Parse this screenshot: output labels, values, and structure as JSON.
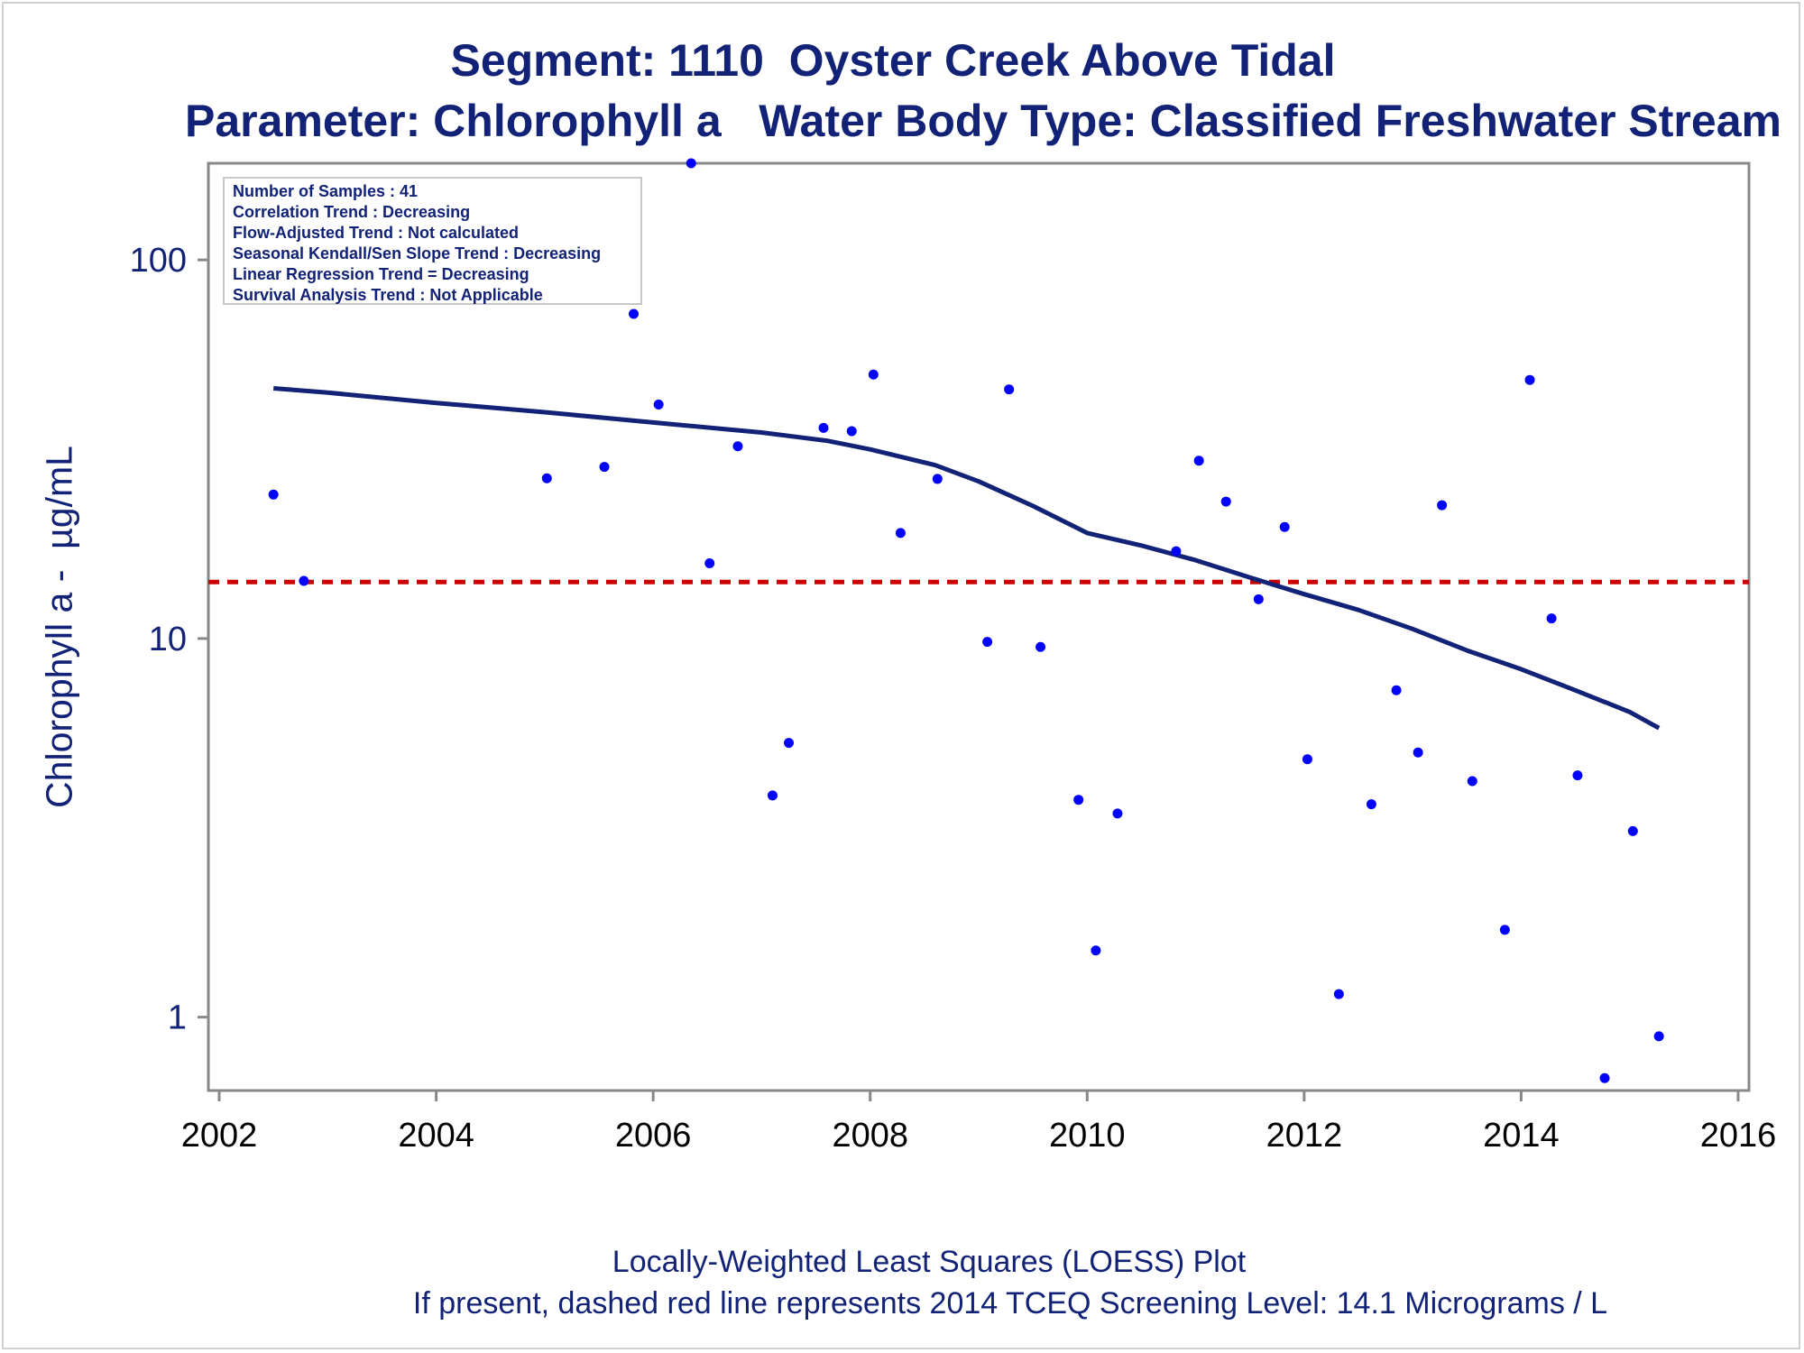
{
  "title": "Segment: 1110  Oyster Creek Above Tidal",
  "subtitle": "Parameter: Chlorophyll a   Water Body Type: Classified Freshwater Stream",
  "ylabel": "Chlorophyll a -  µg/mL",
  "footnote1": "Locally-Weighted Least Squares (LOESS) Plot",
  "footnote2": "If present, dashed red line represents 2014 TCEQ Screening Level: 14.1 Micrograms / L",
  "stats": [
    "Number of Samples : 41",
    "Correlation Trend : Decreasing",
    "Flow-Adjusted Trend : Not calculated",
    "Seasonal Kendall/Sen Slope Trend : Decreasing",
    "Linear Regression Trend = Decreasing",
    "Survival Analysis Trend : Not Applicable"
  ],
  "colors": {
    "text": "#112277",
    "points": "#0000ff",
    "loess": "#112277",
    "screening": "#cc0000",
    "axis": "#888888"
  },
  "chart_data": {
    "type": "scatter",
    "y_scale": "log",
    "xlim": [
      2001.9,
      2016.1
    ],
    "ylim": [
      0.64,
      180
    ],
    "xticks": [
      "2002",
      "2004",
      "2006",
      "2008",
      "2010",
      "2012",
      "2014",
      "2016"
    ],
    "yticks": [
      "1",
      "10",
      "100"
    ],
    "screening_level": 14.1,
    "points": [
      {
        "x": 2002.5,
        "y": 24
      },
      {
        "x": 2002.78,
        "y": 14.2
      },
      {
        "x": 2005.02,
        "y": 26.5
      },
      {
        "x": 2005.55,
        "y": 28.4
      },
      {
        "x": 2005.82,
        "y": 72
      },
      {
        "x": 2006.05,
        "y": 41.5
      },
      {
        "x": 2006.35,
        "y": 180
      },
      {
        "x": 2006.52,
        "y": 15.8
      },
      {
        "x": 2006.78,
        "y": 32.2
      },
      {
        "x": 2007.1,
        "y": 3.85
      },
      {
        "x": 2007.25,
        "y": 5.3
      },
      {
        "x": 2007.57,
        "y": 36
      },
      {
        "x": 2007.83,
        "y": 35.3
      },
      {
        "x": 2008.03,
        "y": 49.8
      },
      {
        "x": 2008.28,
        "y": 19
      },
      {
        "x": 2008.62,
        "y": 26.4
      },
      {
        "x": 2009.08,
        "y": 9.8
      },
      {
        "x": 2009.28,
        "y": 45.5
      },
      {
        "x": 2009.57,
        "y": 9.5
      },
      {
        "x": 2009.92,
        "y": 3.75
      },
      {
        "x": 2010.08,
        "y": 1.5
      },
      {
        "x": 2010.28,
        "y": 3.45
      },
      {
        "x": 2010.82,
        "y": 17
      },
      {
        "x": 2011.03,
        "y": 29.5
      },
      {
        "x": 2011.28,
        "y": 23
      },
      {
        "x": 2011.58,
        "y": 12.7
      },
      {
        "x": 2011.82,
        "y": 19.7
      },
      {
        "x": 2012.03,
        "y": 4.8
      },
      {
        "x": 2012.32,
        "y": 1.15
      },
      {
        "x": 2012.62,
        "y": 3.65
      },
      {
        "x": 2012.85,
        "y": 7.3
      },
      {
        "x": 2013.05,
        "y": 5
      },
      {
        "x": 2013.27,
        "y": 22.5
      },
      {
        "x": 2013.55,
        "y": 4.2
      },
      {
        "x": 2013.85,
        "y": 1.7
      },
      {
        "x": 2014.08,
        "y": 48.2
      },
      {
        "x": 2014.28,
        "y": 11.3
      },
      {
        "x": 2014.52,
        "y": 4.35
      },
      {
        "x": 2014.77,
        "y": 0.69
      },
      {
        "x": 2015.03,
        "y": 3.1
      },
      {
        "x": 2015.27,
        "y": 0.89
      }
    ],
    "loess": [
      {
        "x": 2002.5,
        "y": 45.8
      },
      {
        "x": 2003.0,
        "y": 44.6
      },
      {
        "x": 2004.0,
        "y": 41.9
      },
      {
        "x": 2005.0,
        "y": 39.6
      },
      {
        "x": 2006.0,
        "y": 37.2
      },
      {
        "x": 2007.0,
        "y": 35.0
      },
      {
        "x": 2007.6,
        "y": 33.3
      },
      {
        "x": 2008.0,
        "y": 31.6
      },
      {
        "x": 2008.6,
        "y": 28.7
      },
      {
        "x": 2009.0,
        "y": 26.0
      },
      {
        "x": 2009.5,
        "y": 22.4
      },
      {
        "x": 2010.0,
        "y": 19.0
      },
      {
        "x": 2010.5,
        "y": 17.6
      },
      {
        "x": 2011.0,
        "y": 16.1
      },
      {
        "x": 2011.5,
        "y": 14.5
      },
      {
        "x": 2012.0,
        "y": 13.1
      },
      {
        "x": 2012.5,
        "y": 11.9
      },
      {
        "x": 2013.0,
        "y": 10.6
      },
      {
        "x": 2013.5,
        "y": 9.3
      },
      {
        "x": 2014.0,
        "y": 8.3
      },
      {
        "x": 2014.5,
        "y": 7.3
      },
      {
        "x": 2015.0,
        "y": 6.4
      },
      {
        "x": 2015.27,
        "y": 5.8
      }
    ]
  }
}
